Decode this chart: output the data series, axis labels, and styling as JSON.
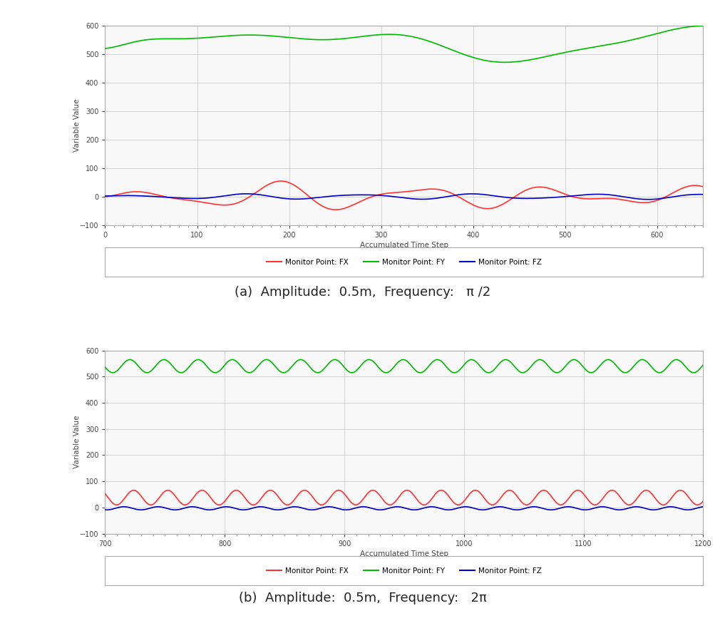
{
  "chart_a": {
    "caption": "(a)  Amplitude:  0.5m,  Frequency:   π /2",
    "x_start": 0,
    "x_end": 650,
    "x_ticks": [
      0,
      100,
      200,
      300,
      400,
      500,
      600
    ],
    "y_min": -100,
    "y_max": 600,
    "y_ticks": [
      -100,
      0,
      100,
      200,
      300,
      400,
      500,
      600
    ],
    "xlabel": "Accumulated Time Step",
    "ylabel": "Variable Value"
  },
  "chart_b": {
    "caption": "(b)  Amplitude:  0.5m,  Frequency:   2π",
    "x_start": 700,
    "x_end": 1200,
    "x_ticks": [
      700,
      800,
      900,
      1000,
      1100,
      1200
    ],
    "y_min": -100,
    "y_max": 600,
    "y_ticks": [
      -100,
      0,
      100,
      200,
      300,
      400,
      500,
      600
    ],
    "xlabel": "Accumulated Time Step",
    "ylabel": "Variable Value"
  },
  "legend_labels": [
    "Monitor Point: FX",
    "Monitor Point: FY",
    "Monitor Point: FZ"
  ],
  "line_colors": [
    "#ff3333",
    "#00bb00",
    "#0000cc"
  ],
  "page_bg": "#ffffff",
  "plot_bg": "#f8f8f8",
  "grid_color": "#cccccc",
  "border_color": "#aaaaaa"
}
